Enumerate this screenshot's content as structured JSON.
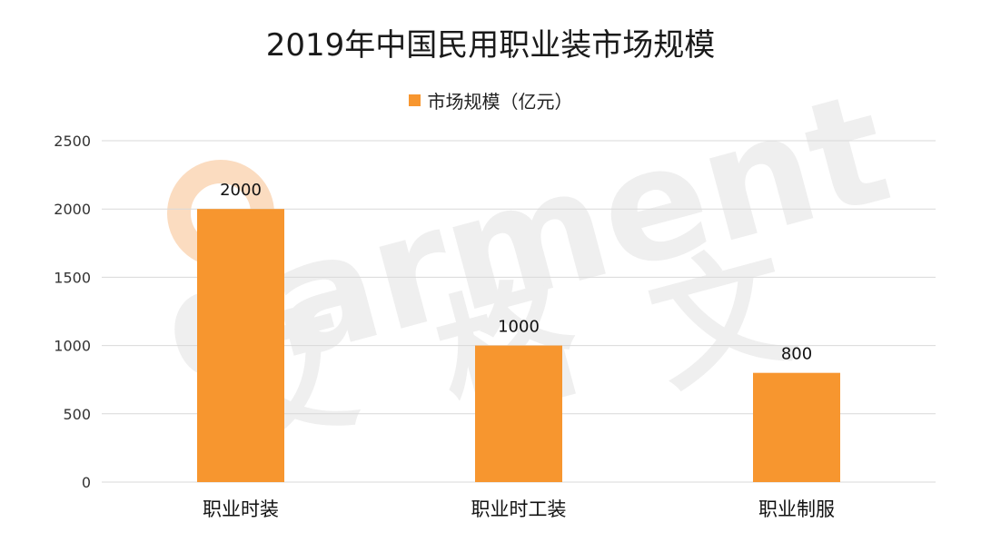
{
  "chart_data": {
    "type": "bar",
    "title": "2019年中国民用职业装市场规模",
    "categories": [
      "职业时装",
      "职业时工装",
      "职业制服"
    ],
    "series": [
      {
        "name": "市场规模（亿元）",
        "values": [
          2000,
          1000,
          800
        ]
      }
    ],
    "xlabel": "",
    "ylabel": "",
    "ylim": [
      0,
      2500
    ],
    "yticks": [
      0,
      500,
      1000,
      1500,
      2000,
      2500
    ],
    "data_labels": [
      "2000",
      "1000",
      "800"
    ],
    "grid": true,
    "legend_position": "top-center"
  },
  "colors": {
    "bar": "#f7962f",
    "grid": "#d9d9d9",
    "watermark": "#efefef",
    "watermark_logo": "#fbdcc0"
  },
  "watermark": {
    "latin": "garment",
    "cjk": [
      "艾",
      "格",
      "文"
    ]
  }
}
